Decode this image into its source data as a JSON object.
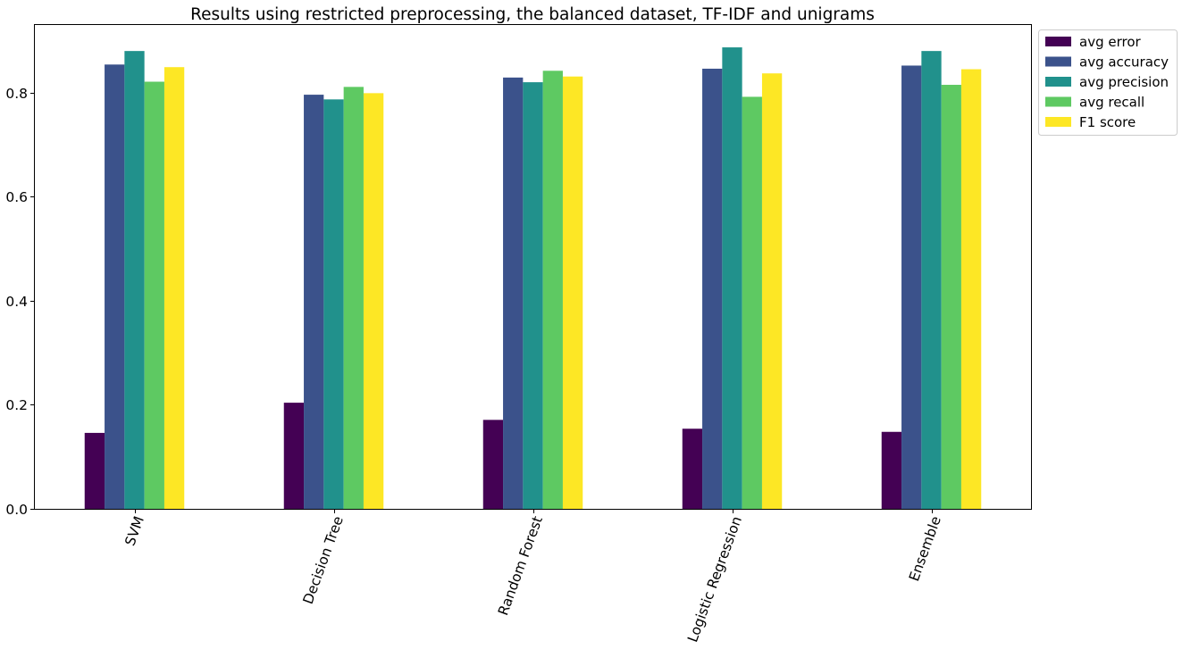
{
  "chart_data": {
    "type": "bar",
    "title": "Results using restricted preprocessing, the balanced dataset, TF-IDF and unigrams",
    "xlabel": "",
    "ylabel": "",
    "categories": [
      "SVM",
      "Decision Tree",
      "Random Forest",
      "Logistic Regression",
      "Ensemble"
    ],
    "series": [
      {
        "name": "avg error",
        "color": "#440154",
        "values": [
          0.146,
          0.204,
          0.171,
          0.154,
          0.148
        ]
      },
      {
        "name": "avg accuracy",
        "color": "#3b528b",
        "values": [
          0.854,
          0.796,
          0.829,
          0.846,
          0.852
        ]
      },
      {
        "name": "avg precision",
        "color": "#21918c",
        "values": [
          0.88,
          0.787,
          0.82,
          0.887,
          0.88
        ]
      },
      {
        "name": "avg recall",
        "color": "#5ec962",
        "values": [
          0.821,
          0.811,
          0.842,
          0.792,
          0.815
        ]
      },
      {
        "name": "F1 score",
        "color": "#fde725",
        "values": [
          0.849,
          0.799,
          0.831,
          0.837,
          0.845
        ]
      }
    ],
    "ylim": [
      0,
      0.93
    ],
    "yticks": [
      "0.0",
      "0.2",
      "0.4",
      "0.6",
      "0.8"
    ],
    "xtick_rotation": 70,
    "grid": false,
    "legend_position": "outside top-right"
  }
}
